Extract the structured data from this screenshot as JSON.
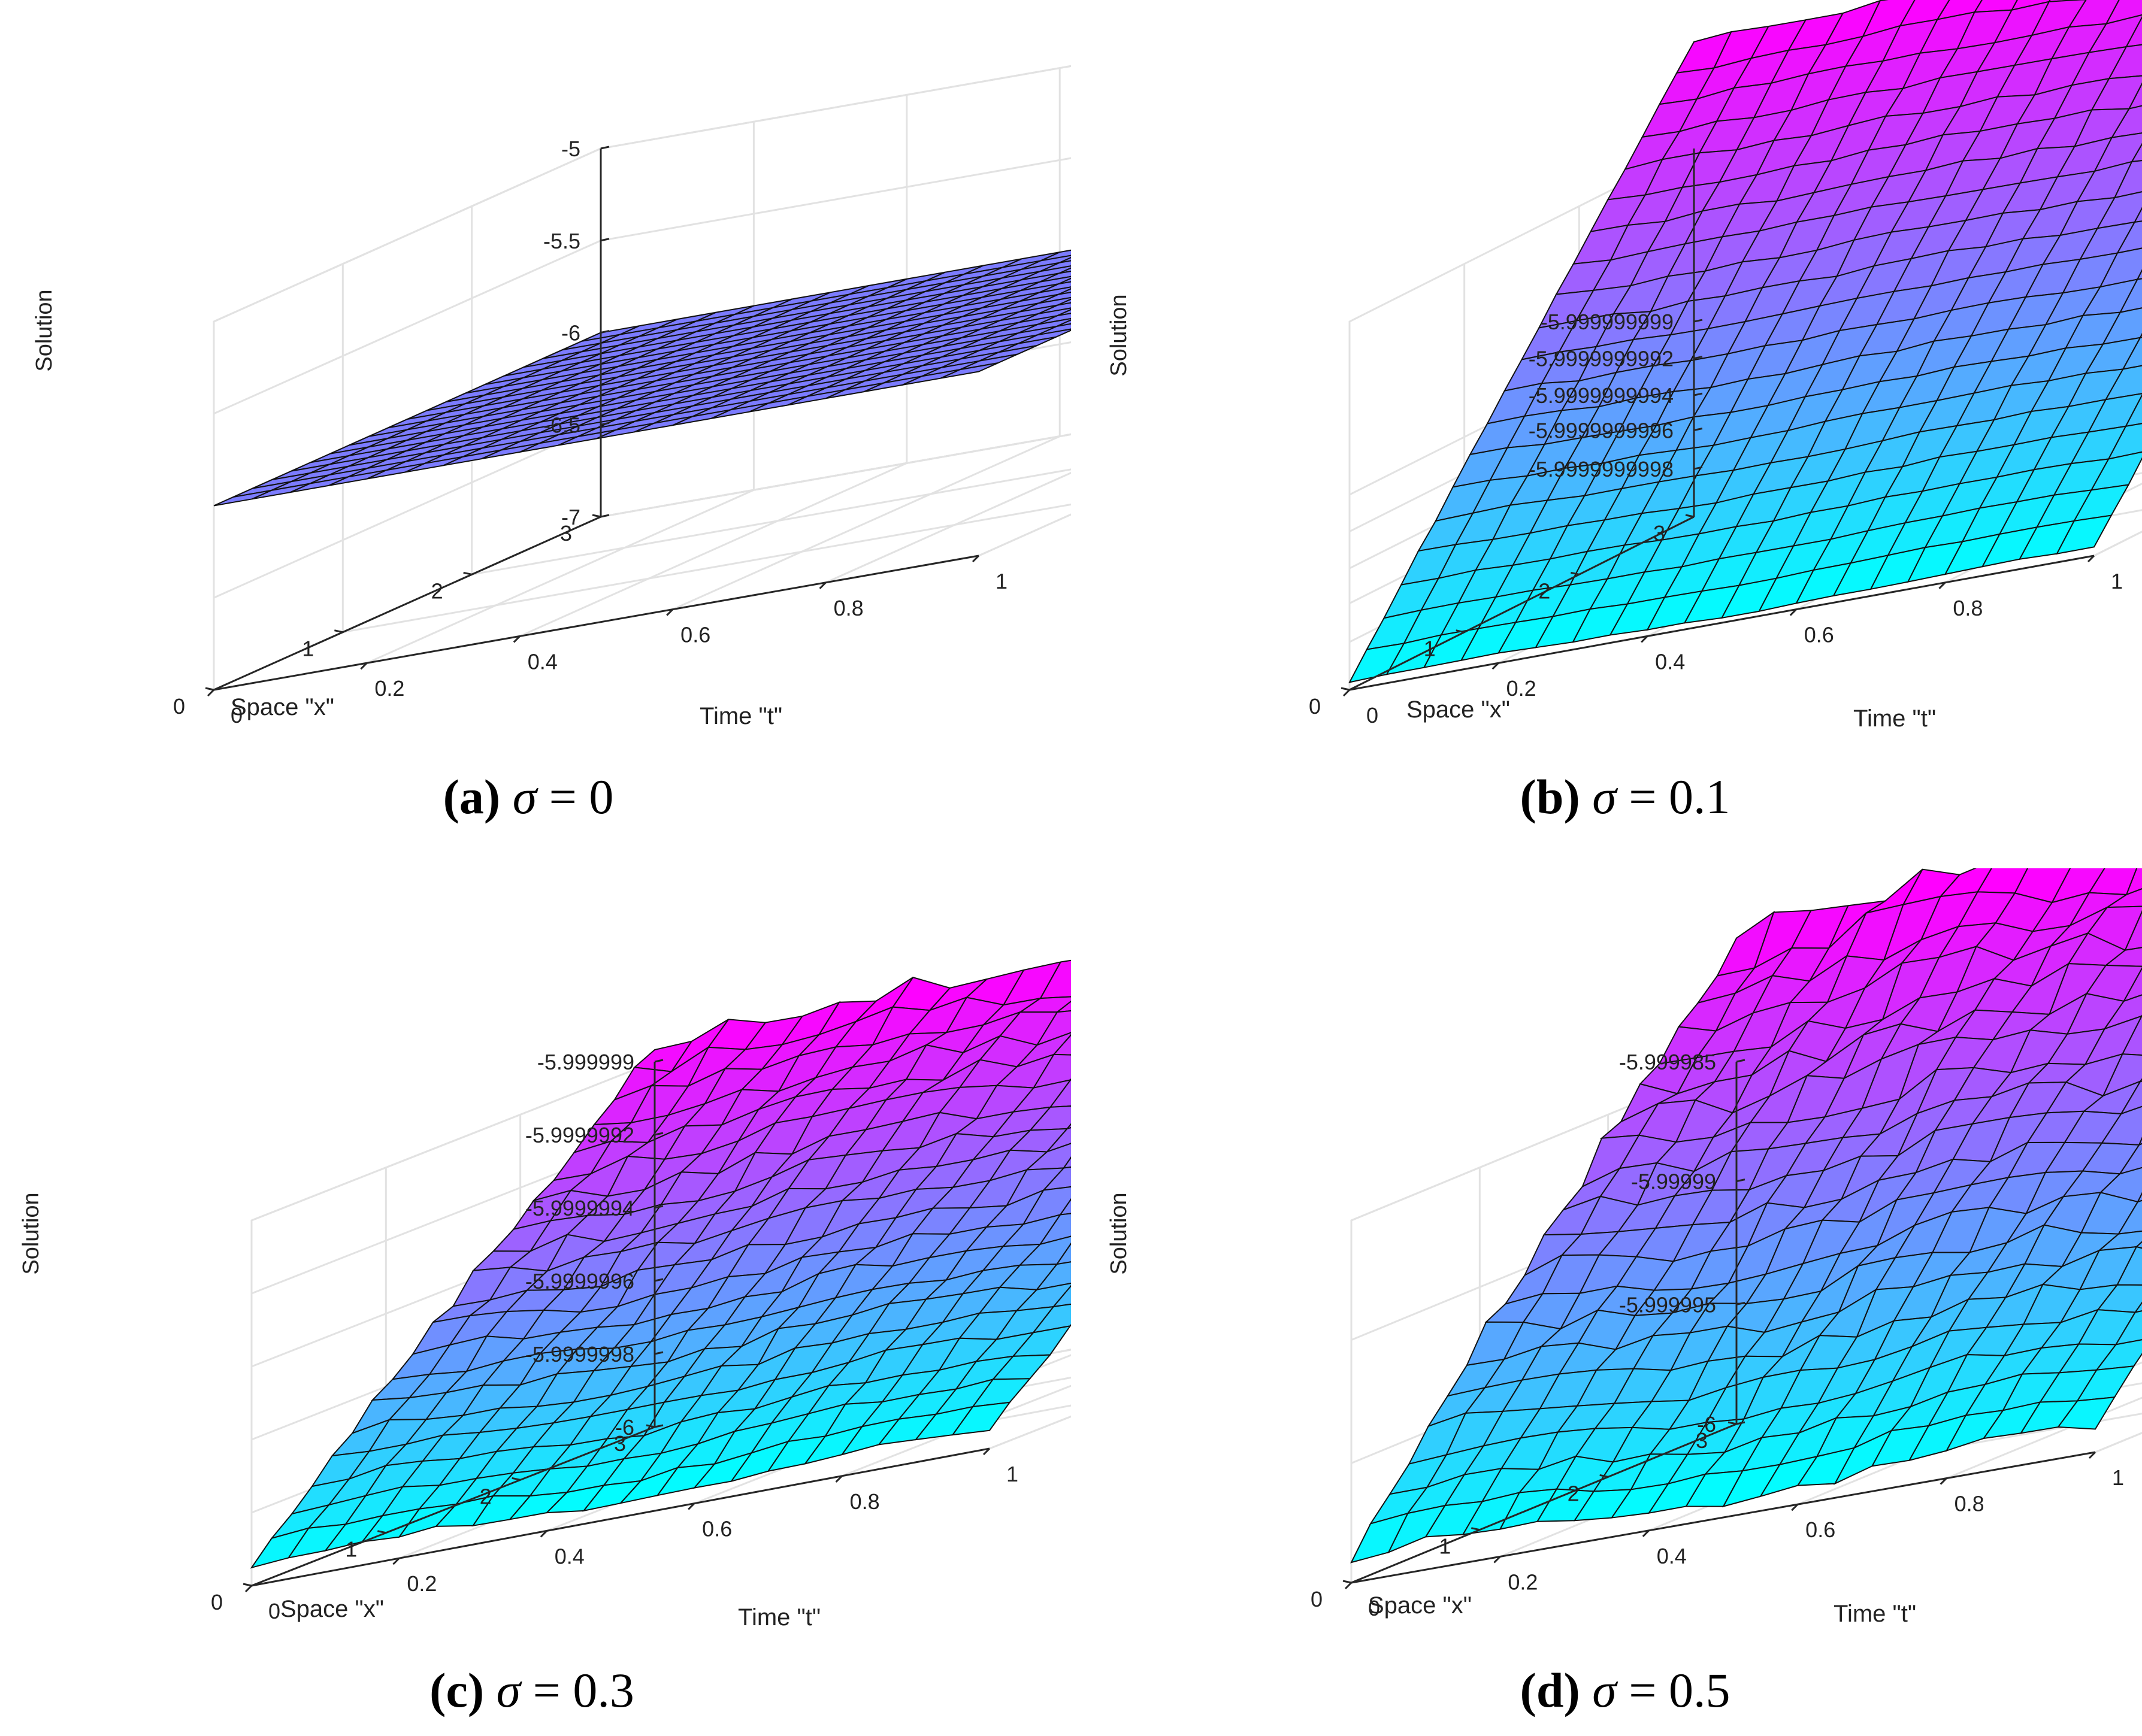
{
  "chart_data": [
    {
      "id": "a",
      "type": "surface",
      "zlabel": "Solution",
      "xlabel": "Time \"t\"",
      "ylabel": "Space \"x\"",
      "x_ticks": [
        "0",
        "0.2",
        "0.4",
        "0.6",
        "0.8",
        "1"
      ],
      "y_ticks": [
        "0",
        "1",
        "2",
        "3"
      ],
      "z_ticks": [
        "-7",
        "-6.5",
        "-6",
        "-5.5",
        "-5"
      ],
      "xlim": [
        0,
        1
      ],
      "ylim": [
        0,
        3
      ],
      "zlim": [
        -7,
        -5
      ],
      "surface_value": -6,
      "noise_level": 0,
      "mesh": [
        20,
        20
      ],
      "color_map": [
        "#00ffff",
        "#ff00ff"
      ],
      "caption": {
        "letter": "(a)",
        "symbol": "σ",
        "rest": " = 0"
      }
    },
    {
      "id": "b",
      "type": "surface",
      "zlabel": "Solution",
      "xlabel": "Time \"t\"",
      "ylabel": "Space \"x\"",
      "x_ticks": [
        "0",
        "0.2",
        "0.4",
        "0.6",
        "0.8",
        "1"
      ],
      "y_ticks": [
        "0",
        "1",
        "2",
        "3"
      ],
      "z_ticks": [
        "-5.9999999998",
        "-5.9999999996",
        "-5.9999999994",
        "-5.9999999992",
        "-5.999999999"
      ],
      "xlim": [
        0,
        1
      ],
      "ylim": [
        0,
        3
      ],
      "noise_level": 0.1,
      "mesh": [
        20,
        20
      ],
      "color_map": [
        "#00ffff",
        "#ff00ff"
      ],
      "caption": {
        "letter": "(b)",
        "symbol": "σ",
        "rest": " = 0.1"
      }
    },
    {
      "id": "c",
      "type": "surface",
      "zlabel": "Solution",
      "xlabel": "Time \"t\"",
      "ylabel": "Space \"x\"",
      "x_ticks": [
        "0",
        "0.2",
        "0.4",
        "0.6",
        "0.8",
        "1"
      ],
      "y_ticks": [
        "0",
        "1",
        "2",
        "3"
      ],
      "z_ticks": [
        "-6",
        "-5.9999998",
        "-5.9999996",
        "-5.9999994",
        "-5.9999992",
        "-5.999999"
      ],
      "xlim": [
        0,
        1
      ],
      "ylim": [
        0,
        3
      ],
      "zlim": [
        -6,
        -5.999999
      ],
      "noise_level": 0.3,
      "mesh": [
        20,
        20
      ],
      "color_map": [
        "#00ffff",
        "#ff00ff"
      ],
      "caption": {
        "letter": "(c)",
        "symbol": "σ",
        "rest": " = 0.3"
      }
    },
    {
      "id": "d",
      "type": "surface",
      "zlabel": "Solution",
      "xlabel": "Time \"t\"",
      "ylabel": "Space \"x\"",
      "x_ticks": [
        "0",
        "0.2",
        "0.4",
        "0.6",
        "0.8",
        "1"
      ],
      "y_ticks": [
        "0",
        "1",
        "2",
        "3"
      ],
      "z_ticks": [
        "-6",
        "-5.999995",
        "-5.99999",
        "-5.999985"
      ],
      "xlim": [
        0,
        1
      ],
      "ylim": [
        0,
        3
      ],
      "zlim": [
        -6,
        -5.999985
      ],
      "noise_level": 0.5,
      "mesh": [
        20,
        20
      ],
      "color_map": [
        "#00ffff",
        "#ff00ff"
      ],
      "caption": {
        "letter": "(d)",
        "symbol": "σ",
        "rest": " = 0.5"
      }
    }
  ]
}
